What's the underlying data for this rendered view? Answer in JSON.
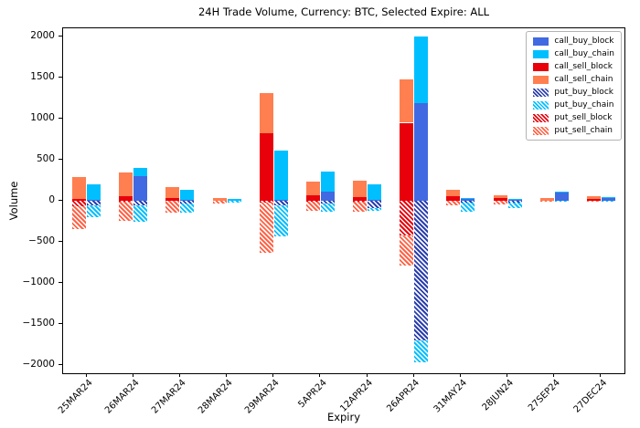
{
  "chart_data": {
    "type": "bar",
    "title": "24H Trade Volume, Currency: BTC, Selected Expire: ALL",
    "xlabel": "Expiry",
    "ylabel": "Volume",
    "ylim": [
      -2100,
      2100
    ],
    "yticks": [
      -2000,
      -1500,
      -1000,
      -500,
      0,
      500,
      1000,
      1500,
      2000
    ],
    "grid": false,
    "legend_position": "upper right",
    "categories": [
      "25MAR24",
      "26MAR24",
      "27MAR24",
      "28MAR24",
      "29MAR24",
      "5APR24",
      "12APR24",
      "26APR24",
      "31MAY24",
      "28JUN24",
      "27SEP24",
      "27DEC24"
    ],
    "series": [
      {
        "name": "call_buy_block",
        "color": "#4169e1",
        "hatch": false,
        "values": [
          15,
          300,
          10,
          5,
          10,
          110,
          15,
          1190,
          30,
          15,
          110,
          40
        ]
      },
      {
        "name": "call_buy_chain",
        "color": "#00bfff",
        "hatch": false,
        "values": [
          185,
          100,
          120,
          15,
          600,
          250,
          185,
          810,
          5,
          5,
          5,
          5
        ]
      },
      {
        "name": "call_sell_block",
        "color": "#e8000b",
        "hatch": false,
        "values": [
          20,
          60,
          30,
          5,
          820,
          70,
          50,
          950,
          55,
          35,
          5,
          25
        ]
      },
      {
        "name": "call_sell_chain",
        "color": "#ff7f50",
        "hatch": false,
        "values": [
          270,
          290,
          140,
          25,
          490,
          160,
          200,
          530,
          75,
          35,
          30,
          30
        ]
      },
      {
        "name": "put_buy_block",
        "color": "#2b3faf",
        "hatch": true,
        "values": [
          -50,
          -50,
          -30,
          -5,
          -60,
          -30,
          -90,
          -1700,
          -20,
          -25,
          -5,
          -5
        ]
      },
      {
        "name": "put_buy_chain",
        "color": "#00bfff",
        "hatch": true,
        "values": [
          -150,
          -200,
          -120,
          -15,
          -370,
          -100,
          -30,
          -270,
          -110,
          -65,
          -5,
          -5
        ]
      },
      {
        "name": "put_sell_block",
        "color": "#e8000b",
        "hatch": true,
        "values": [
          -70,
          -10,
          -5,
          -5,
          -20,
          -10,
          -10,
          -420,
          -5,
          -5,
          -5,
          -5
        ]
      },
      {
        "name": "put_sell_chain",
        "color": "#ff6347",
        "hatch": true,
        "values": [
          -280,
          -240,
          -145,
          -25,
          -610,
          -110,
          -120,
          -370,
          -55,
          -45,
          -10,
          -10
        ]
      }
    ],
    "bars": [
      {
        "name": "sell",
        "pos": [
          "call_sell_block",
          "call_sell_chain"
        ],
        "neg": [
          "put_sell_block",
          "put_sell_chain"
        ]
      },
      {
        "name": "buy",
        "pos": [
          "call_buy_block",
          "call_buy_chain"
        ],
        "neg": [
          "put_buy_block",
          "put_buy_chain"
        ]
      }
    ],
    "legend": [
      "call_buy_block",
      "call_buy_chain",
      "call_sell_block",
      "call_sell_chain",
      "put_buy_block",
      "put_buy_chain",
      "put_sell_block",
      "put_sell_chain"
    ]
  }
}
